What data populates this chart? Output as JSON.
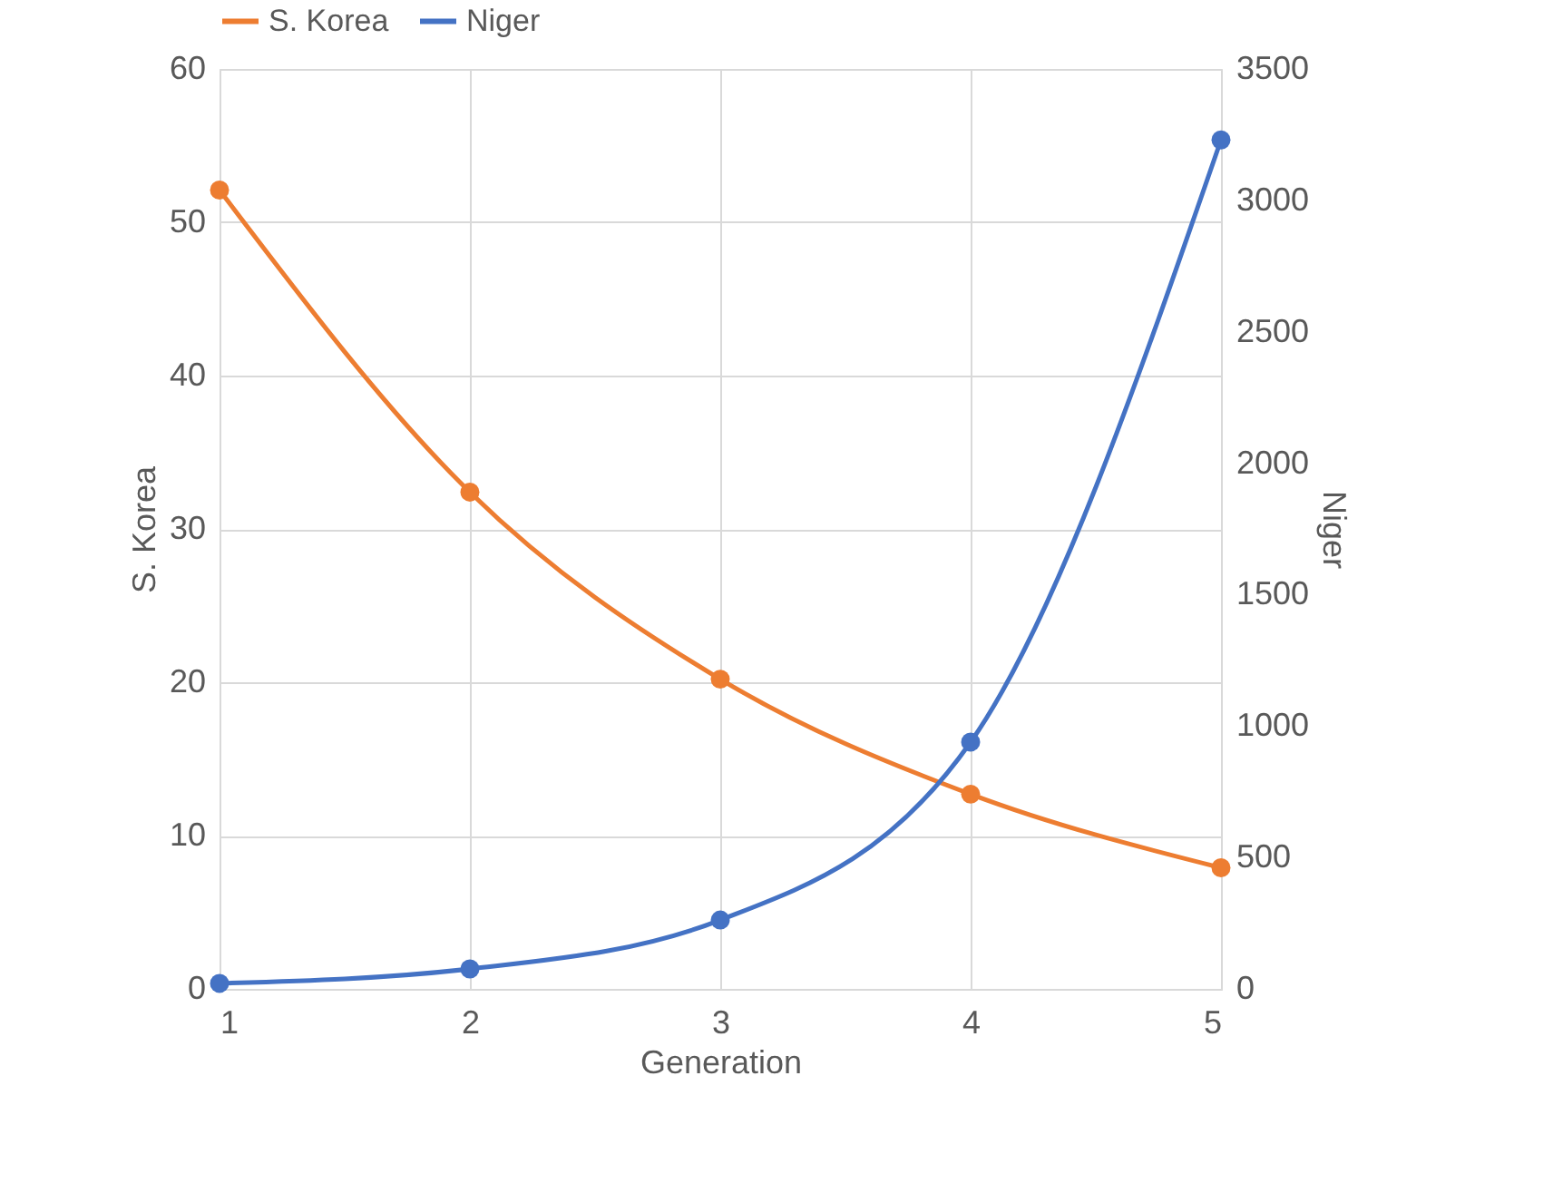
{
  "chart_data": {
    "type": "line",
    "xlabel": "Generation",
    "ylabel": "S. Korea",
    "y2label": "Niger",
    "x": [
      1,
      2,
      3,
      4,
      5
    ],
    "series": [
      {
        "name": "S. Korea",
        "color": "#ed7d31",
        "values": [
          52.1,
          32.4,
          20.2,
          12.7,
          7.9
        ]
      },
      {
        "name": "Niger",
        "color": "#4472c4",
        "axis": "y2",
        "values": [
          21,
          76,
          262,
          939,
          3230
        ]
      }
    ],
    "xlim": [
      1,
      5
    ],
    "xticks": [
      1,
      2,
      3,
      4,
      5
    ],
    "ylim": [
      0,
      60
    ],
    "yticks": [
      0,
      10,
      20,
      30,
      40,
      50,
      60
    ],
    "y2lim": [
      0,
      3500
    ],
    "y2ticks": [
      0,
      500,
      1000,
      1500,
      2000,
      2500,
      3000,
      3500
    ],
    "grid": true,
    "legend": "top",
    "marker": "circle",
    "line_style": "solid"
  }
}
